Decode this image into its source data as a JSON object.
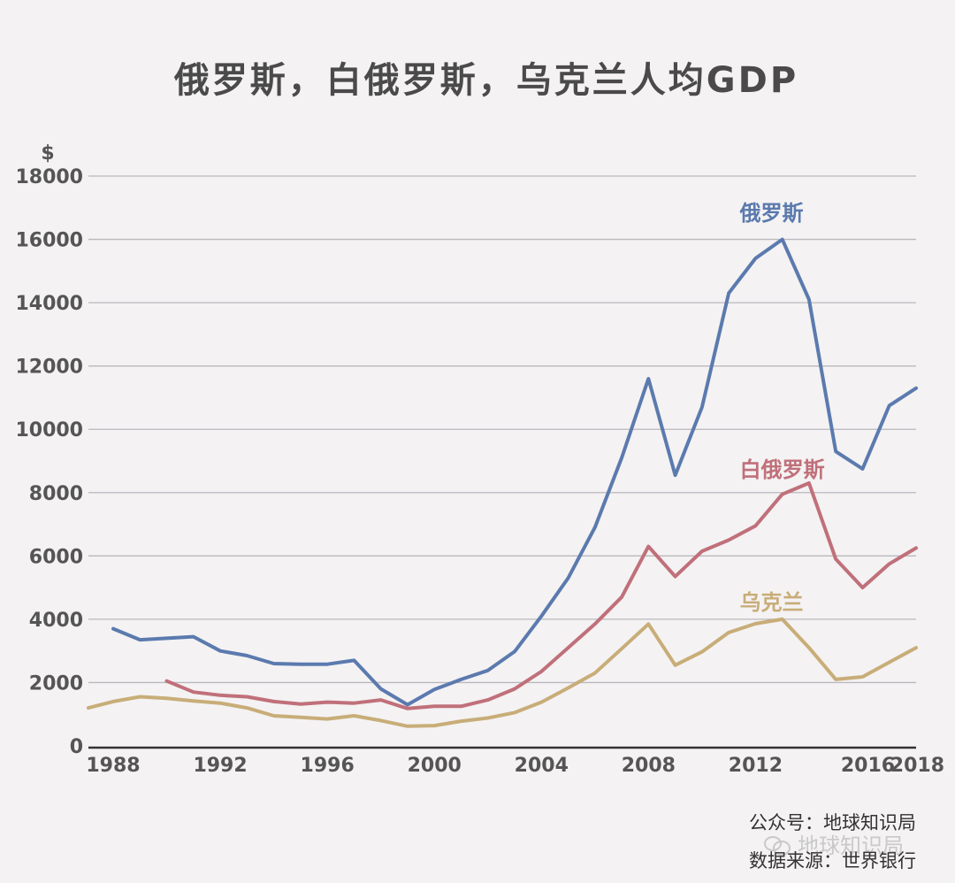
{
  "chart_data": {
    "type": "line",
    "title": "俄罗斯，白俄罗斯，乌克兰人均GDP",
    "ylabel": "$",
    "xlabel": "",
    "ylim": [
      0,
      18000
    ],
    "xlim": [
      1988,
      2018
    ],
    "yticks": [
      "0",
      "2000",
      "4000",
      "6000",
      "8000",
      "10000",
      "12000",
      "14000",
      "16000",
      "18000"
    ],
    "xticks": [
      "1988",
      "1992",
      "1996",
      "2000",
      "2004",
      "2008",
      "2012",
      "2016",
      "2018"
    ],
    "grid": true,
    "series": [
      {
        "name": "俄罗斯",
        "color": "#5b7aae",
        "points": [
          [
            1988,
            3700
          ],
          [
            1989,
            3350
          ],
          [
            1990,
            3400
          ],
          [
            1991,
            3450
          ],
          [
            1992,
            3000
          ],
          [
            1993,
            2850
          ],
          [
            1994,
            2600
          ],
          [
            1995,
            2580
          ],
          [
            1996,
            2580
          ],
          [
            1997,
            2700
          ],
          [
            1998,
            1800
          ],
          [
            1999,
            1300
          ],
          [
            2000,
            1780
          ],
          [
            2001,
            2100
          ],
          [
            2002,
            2380
          ],
          [
            2003,
            2980
          ],
          [
            2004,
            4100
          ],
          [
            2005,
            5300
          ],
          [
            2006,
            6900
          ],
          [
            2007,
            9100
          ],
          [
            2008,
            11600
          ],
          [
            2009,
            8550
          ],
          [
            2010,
            10700
          ],
          [
            2011,
            14300
          ],
          [
            2012,
            15400
          ],
          [
            2013,
            16000
          ],
          [
            2014,
            14100
          ],
          [
            2015,
            9300
          ],
          [
            2016,
            8750
          ],
          [
            2017,
            10750
          ],
          [
            2018,
            11300
          ]
        ]
      },
      {
        "name": "白俄罗斯",
        "color": "#c0707a",
        "points": [
          [
            1990,
            2050
          ],
          [
            1991,
            1700
          ],
          [
            1992,
            1600
          ],
          [
            1993,
            1550
          ],
          [
            1994,
            1400
          ],
          [
            1995,
            1320
          ],
          [
            1996,
            1380
          ],
          [
            1997,
            1350
          ],
          [
            1998,
            1450
          ],
          [
            1999,
            1180
          ],
          [
            2000,
            1250
          ],
          [
            2001,
            1250
          ],
          [
            2002,
            1450
          ],
          [
            2003,
            1800
          ],
          [
            2004,
            2350
          ],
          [
            2005,
            3100
          ],
          [
            2006,
            3850
          ],
          [
            2007,
            4700
          ],
          [
            2008,
            6300
          ],
          [
            2009,
            5350
          ],
          [
            2010,
            6150
          ],
          [
            2011,
            6500
          ],
          [
            2012,
            6950
          ],
          [
            2013,
            7950
          ],
          [
            2014,
            8300
          ],
          [
            2015,
            5900
          ],
          [
            2016,
            5000
          ],
          [
            2017,
            5750
          ],
          [
            2018,
            6250
          ]
        ]
      },
      {
        "name": "乌克兰",
        "color": "#c8ad78",
        "points": [
          [
            1987,
            1200
          ],
          [
            1988,
            1400
          ],
          [
            1989,
            1550
          ],
          [
            1990,
            1500
          ],
          [
            1991,
            1420
          ],
          [
            1992,
            1350
          ],
          [
            1993,
            1200
          ],
          [
            1994,
            950
          ],
          [
            1995,
            900
          ],
          [
            1996,
            850
          ],
          [
            1997,
            950
          ],
          [
            1998,
            800
          ],
          [
            1999,
            620
          ],
          [
            2000,
            640
          ],
          [
            2001,
            780
          ],
          [
            2002,
            880
          ],
          [
            2003,
            1050
          ],
          [
            2004,
            1380
          ],
          [
            2005,
            1830
          ],
          [
            2006,
            2300
          ],
          [
            2007,
            3070
          ],
          [
            2008,
            3850
          ],
          [
            2009,
            2550
          ],
          [
            2010,
            2970
          ],
          [
            2011,
            3580
          ],
          [
            2012,
            3860
          ],
          [
            2013,
            4000
          ],
          [
            2014,
            3100
          ],
          [
            2015,
            2100
          ],
          [
            2016,
            2180
          ],
          [
            2017,
            2640
          ],
          [
            2018,
            3100
          ]
        ]
      }
    ],
    "annotations": [
      {
        "text": "俄罗斯",
        "series": 0,
        "x": 2012.6,
        "y": 16600
      },
      {
        "text": "白俄罗斯",
        "series": 1,
        "x": 2013.0,
        "y": 8500
      },
      {
        "text": "乌克兰",
        "series": 2,
        "x": 2012.6,
        "y": 4300
      }
    ]
  },
  "footer": {
    "account": "公众号：地球知识局",
    "watermark": "地球知识局",
    "source": "数据来源：世界银行"
  }
}
